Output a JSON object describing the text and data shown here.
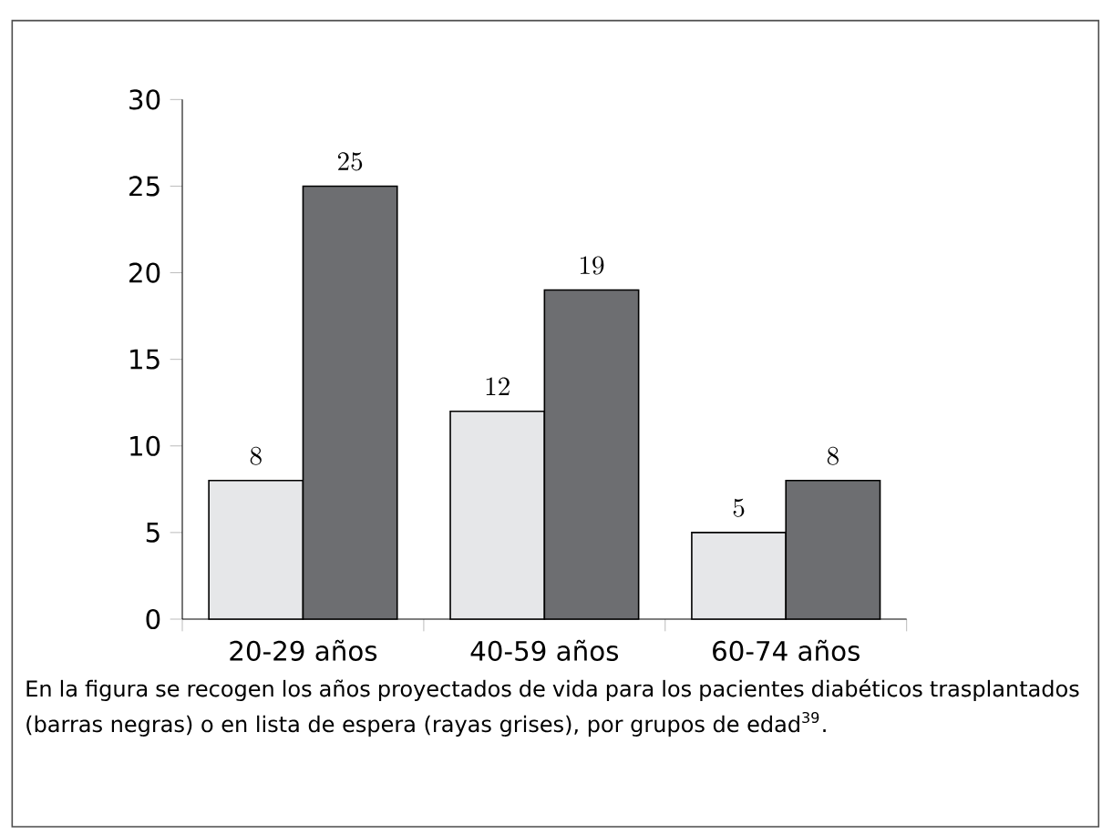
{
  "chart_data": {
    "type": "bar",
    "categories": [
      "20-29 años",
      "40-59 años",
      "60-74 años"
    ],
    "series": [
      {
        "color": "#e6e7e9",
        "values": [
          8,
          12,
          5
        ]
      },
      {
        "color": "#6d6e71",
        "values": [
          25,
          19,
          8
        ]
      }
    ],
    "ylim": [
      0,
      30
    ],
    "yticks": [
      0,
      5,
      10,
      15,
      20,
      25,
      30
    ],
    "data_labels": true,
    "annotations": [
      "En la figura se recogen los años proyectados de vida para los pacientes diabéticos trasplantados (barras negras) o en lista de espera (rayas grises), por grupos de edad$^{39}$."
    ]
  }
}
